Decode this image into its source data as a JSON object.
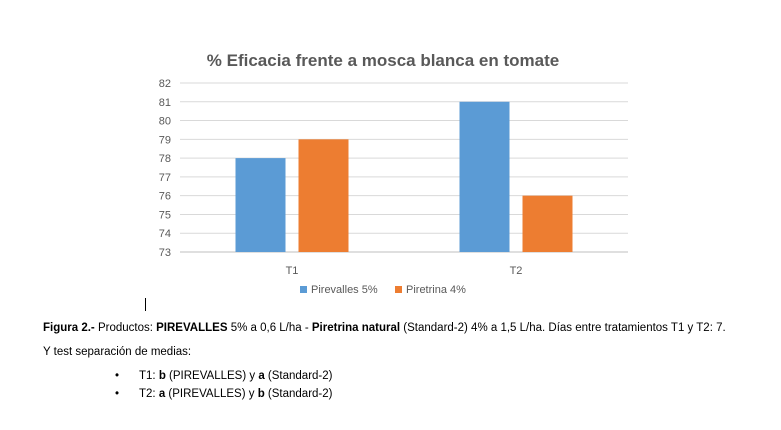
{
  "chart_data": {
    "type": "bar",
    "title": "% Eficacia frente a mosca blanca en tomate",
    "categories": [
      "T1",
      "T2"
    ],
    "series": [
      {
        "name": "Pirevalles 5%",
        "values": [
          78,
          81
        ],
        "color": "#5B9BD5"
      },
      {
        "name": "Piretrina 4%",
        "values": [
          79,
          76
        ],
        "color": "#ED7D31"
      }
    ],
    "ylim": [
      73,
      82
    ],
    "yticks": [
      73,
      74,
      75,
      76,
      77,
      78,
      79,
      80,
      81,
      82
    ],
    "xlabel": "",
    "ylabel": "",
    "grid": true,
    "legend_position": "bottom"
  },
  "document": {
    "caption": {
      "label": "Figura 2.-",
      "t1": " Productos: ",
      "b1": "PIREVALLES",
      "t2": " 5% a 0,6 L/ha - ",
      "b2": "Piretrina natural",
      "t3": " (Standard-2) 4% a 1,5 L/ha. Días entre tratamientos T1 y T2: 7."
    },
    "intro": "Y test separación de medias:",
    "tests": [
      {
        "bullet": "•",
        "pre": "T1: ",
        "b1": "b",
        "mid": " (PIREVALLES) y ",
        "b2": "a",
        "post": " (Standard-2)"
      },
      {
        "bullet": "•",
        "pre": "T2: ",
        "b1": "a",
        "mid": " (PIREVALLES) y ",
        "b2": "b",
        "post": " (Standard-2)"
      }
    ]
  }
}
